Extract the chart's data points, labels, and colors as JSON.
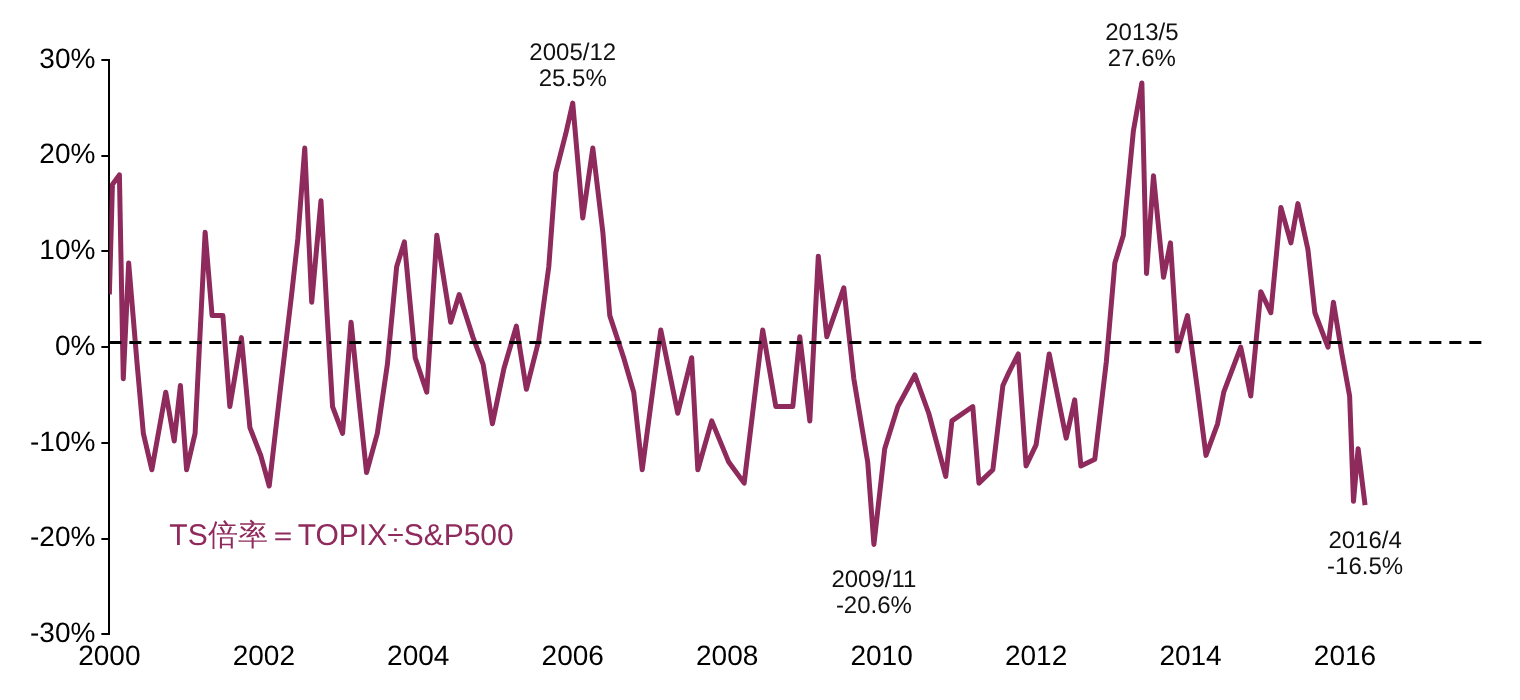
{
  "chart_data": {
    "type": "line",
    "xlim": [
      2000,
      2017.8
    ],
    "xticks": [
      2000,
      2002,
      2004,
      2006,
      2008,
      2010,
      2012,
      2014,
      2016
    ],
    "ylim": [
      -30,
      30
    ],
    "yticks": [
      {
        "value": -30,
        "label": "-30%"
      },
      {
        "value": -20,
        "label": "-20%"
      },
      {
        "value": -10,
        "label": "-10%"
      },
      {
        "value": 0,
        "label": "0%"
      },
      {
        "value": 10,
        "label": "10%"
      },
      {
        "value": 20,
        "label": "20%"
      },
      {
        "value": 30,
        "label": "30%"
      }
    ],
    "grid": false,
    "legend": false,
    "marker": "none",
    "line_style": "solid",
    "ref_lines": [
      {
        "axis": "y",
        "value": 0.5,
        "label": null,
        "color": "#000000",
        "line_style": "dashed"
      }
    ],
    "annotations": [
      {
        "text": "2005/12\n25.5%",
        "x": 2006.0,
        "y": 25.5
      },
      {
        "text": "2009/11\n-20.6%",
        "x": 2009.9,
        "y": -20.6
      },
      {
        "text": "2013/5\n27.6%",
        "x": 2013.37,
        "y": 27.6
      },
      {
        "text": "2016/4\n-16.5%",
        "x": 2016.26,
        "y": -16.5
      }
    ],
    "series": [
      {
        "name": "TS倍率＝TOPIX÷S&P500",
        "color": "#8e2a5c",
        "x": [
          2000.0,
          2000.04,
          2000.13,
          2000.18,
          2000.25,
          2000.36,
          2000.44,
          2000.55,
          2000.73,
          2000.84,
          2000.92,
          2001.0,
          2001.11,
          2001.24,
          2001.33,
          2001.47,
          2001.56,
          2001.71,
          2001.82,
          2001.96,
          2002.07,
          2002.22,
          2002.36,
          2002.44,
          2002.53,
          2002.62,
          2002.74,
          2002.82,
          2002.89,
          2003.02,
          2003.13,
          2003.24,
          2003.33,
          2003.47,
          2003.6,
          2003.72,
          2003.82,
          2003.96,
          2004.11,
          2004.24,
          2004.42,
          2004.53,
          2004.71,
          2004.84,
          2004.96,
          2005.11,
          2005.27,
          2005.4,
          2005.56,
          2005.69,
          2005.78,
          2005.91,
          2006.0,
          2006.13,
          2006.26,
          2006.39,
          2006.48,
          2006.66,
          2006.79,
          2006.9,
          2007.14,
          2007.36,
          2007.54,
          2007.62,
          2007.8,
          2008.02,
          2008.22,
          2008.46,
          2008.63,
          2008.85,
          2008.94,
          2009.07,
          2009.18,
          2009.29,
          2009.51,
          2009.64,
          2009.82,
          2009.9,
          2010.04,
          2010.21,
          2010.43,
          2010.61,
          2010.83,
          2010.91,
          2011.18,
          2011.26,
          2011.44,
          2011.57,
          2011.65,
          2011.77,
          2011.87,
          2012.0,
          2012.17,
          2012.39,
          2012.5,
          2012.58,
          2012.76,
          2012.91,
          2013.02,
          2013.13,
          2013.26,
          2013.37,
          2013.43,
          2013.52,
          2013.65,
          2013.74,
          2013.83,
          2013.96,
          2014.09,
          2014.2,
          2014.35,
          2014.43,
          2014.65,
          2014.78,
          2014.91,
          2015.04,
          2015.17,
          2015.3,
          2015.39,
          2015.52,
          2015.61,
          2015.78,
          2015.85,
          2015.96,
          2016.06,
          2016.11,
          2016.17,
          2016.26
        ],
        "values": [
          5.5,
          17,
          18,
          -3.3,
          8.8,
          -1.8,
          -9,
          -12.8,
          -4.7,
          -9.8,
          -4,
          -12.8,
          -9,
          12,
          3.3,
          3.3,
          -6.2,
          1,
          -8.4,
          -11.3,
          -14.5,
          -4,
          5.5,
          11.3,
          20.8,
          4.7,
          15.3,
          3.3,
          -6.2,
          -9,
          2.6,
          -6.2,
          -13.1,
          -9,
          -1.8,
          8.4,
          11,
          -1.1,
          -4.7,
          11.7,
          2.6,
          5.5,
          1,
          -1.8,
          -8,
          -2.2,
          2.2,
          -4.4,
          0.7,
          8.4,
          18.2,
          22.3,
          25.5,
          13.5,
          20.8,
          12,
          3.3,
          -1.1,
          -4.7,
          -12.8,
          1.8,
          -6.9,
          -1.1,
          -12.8,
          -7.7,
          -12,
          -14.2,
          1.8,
          -6.2,
          -6.2,
          1.1,
          -7.7,
          9.5,
          1.1,
          6.2,
          -3.3,
          -12,
          -20.6,
          -10.6,
          -6.2,
          -2.9,
          -6.9,
          -13.5,
          -7.7,
          -6.2,
          -14.2,
          -12.8,
          -4,
          -2.6,
          -0.7,
          -12.4,
          -10.2,
          -0.7,
          -9.5,
          -5.5,
          -12.4,
          -11.7,
          -1.5,
          8.8,
          11.7,
          22.6,
          27.6,
          7.7,
          17.9,
          7.3,
          10.9,
          -0.4,
          3.3,
          -4.4,
          -11.3,
          -8,
          -4.7,
          0,
          -5.1,
          5.8,
          3.6,
          14.6,
          10.9,
          15,
          10.2,
          3.6,
          0,
          4.7,
          -0.7,
          -5.1,
          -16.1,
          -10.6,
          -16.5
        ]
      }
    ]
  }
}
